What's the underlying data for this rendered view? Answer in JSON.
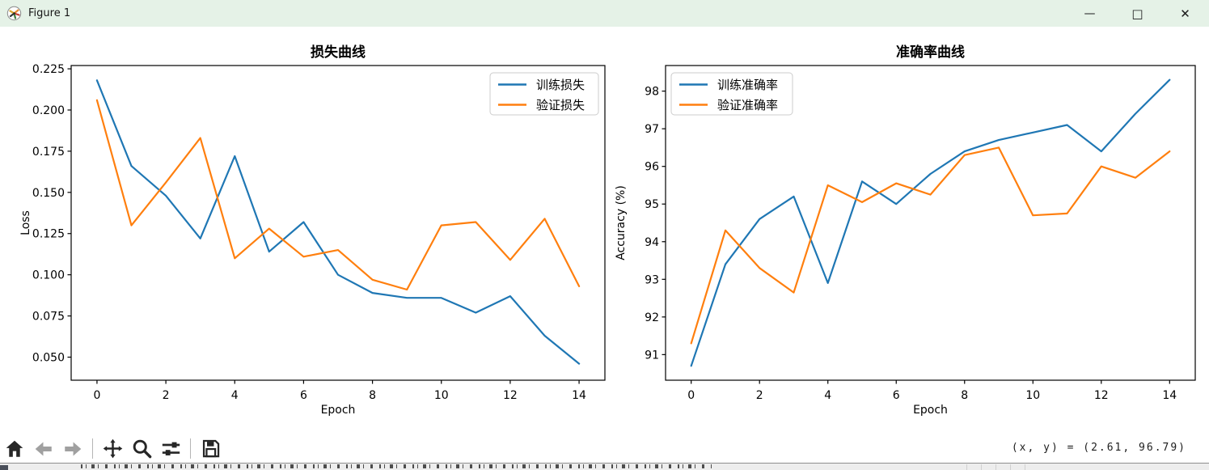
{
  "window": {
    "title": "Figure 1",
    "controls": {
      "minimize": "—",
      "maximize": "□",
      "close": "✕"
    }
  },
  "toolbar": {
    "buttons": [
      {
        "icon": "home-icon",
        "disabled": false
      },
      {
        "icon": "back-arrow-icon",
        "disabled": true
      },
      {
        "icon": "forward-arrow-icon",
        "disabled": true
      },
      {
        "icon": "pan-icon",
        "disabled": false
      },
      {
        "icon": "zoom-rect-icon",
        "disabled": false
      },
      {
        "icon": "configure-subplots-icon",
        "disabled": false
      },
      {
        "icon": "save-icon",
        "disabled": false
      }
    ],
    "status": "(x, y) = (2.61, 96.79)"
  },
  "chart_data": [
    {
      "type": "line",
      "title": "损失曲线",
      "xlabel": "Epoch",
      "ylabel": "Loss",
      "x": [
        0,
        1,
        2,
        3,
        4,
        5,
        6,
        7,
        8,
        9,
        10,
        11,
        12,
        13,
        14
      ],
      "series": [
        {
          "name": "训练损失",
          "color": "#1f77b4",
          "values": [
            0.218,
            0.166,
            0.148,
            0.122,
            0.172,
            0.114,
            0.132,
            0.1,
            0.089,
            0.086,
            0.086,
            0.077,
            0.087,
            0.063,
            0.046
          ]
        },
        {
          "name": "验证损失",
          "color": "#ff7f0e",
          "values": [
            0.206,
            0.13,
            0.156,
            0.183,
            0.11,
            0.128,
            0.111,
            0.115,
            0.097,
            0.091,
            0.13,
            0.132,
            0.109,
            0.134,
            0.093
          ]
        }
      ],
      "xticks": [
        0,
        2,
        4,
        6,
        8,
        10,
        12,
        14
      ],
      "yticks": [
        0.05,
        0.075,
        0.1,
        0.125,
        0.15,
        0.175,
        0.2,
        0.225
      ],
      "ytick_labels": [
        "0.050",
        "0.075",
        "0.100",
        "0.125",
        "0.150",
        "0.175",
        "0.200",
        "0.225"
      ],
      "xlim": [
        -0.75,
        14.75
      ],
      "ylim": [
        0.036,
        0.227
      ],
      "grid": false,
      "legend_position": "upper right"
    },
    {
      "type": "line",
      "title": "准确率曲线",
      "xlabel": "Epoch",
      "ylabel": "Accuracy (%)",
      "x": [
        0,
        1,
        2,
        3,
        4,
        5,
        6,
        7,
        8,
        9,
        10,
        11,
        12,
        13,
        14
      ],
      "series": [
        {
          "name": "训练准确率",
          "color": "#1f77b4",
          "values": [
            90.7,
            93.4,
            94.6,
            95.2,
            92.9,
            95.6,
            95.0,
            95.8,
            96.4,
            96.7,
            96.9,
            97.1,
            96.4,
            97.4,
            98.3
          ]
        },
        {
          "name": "验证准确率",
          "color": "#ff7f0e",
          "values": [
            91.3,
            94.3,
            93.3,
            92.65,
            95.5,
            95.05,
            95.55,
            95.25,
            96.3,
            96.5,
            94.7,
            94.75,
            96.0,
            95.7,
            96.4
          ]
        }
      ],
      "xticks": [
        0,
        2,
        4,
        6,
        8,
        10,
        12,
        14
      ],
      "yticks": [
        91,
        92,
        93,
        94,
        95,
        96,
        97,
        98
      ],
      "ytick_labels": [
        "91",
        "92",
        "93",
        "94",
        "95",
        "96",
        "97",
        "98"
      ],
      "xlim": [
        -0.75,
        14.75
      ],
      "ylim": [
        90.32,
        98.68
      ],
      "grid": false,
      "legend_position": "upper left"
    }
  ],
  "colors": {
    "train_line": "#1f77b4",
    "val_line": "#ff7f0e",
    "titlebar_bg": "#e5f2e7",
    "icon_dark": "#262626",
    "icon_disabled": "#a0a0a0"
  }
}
